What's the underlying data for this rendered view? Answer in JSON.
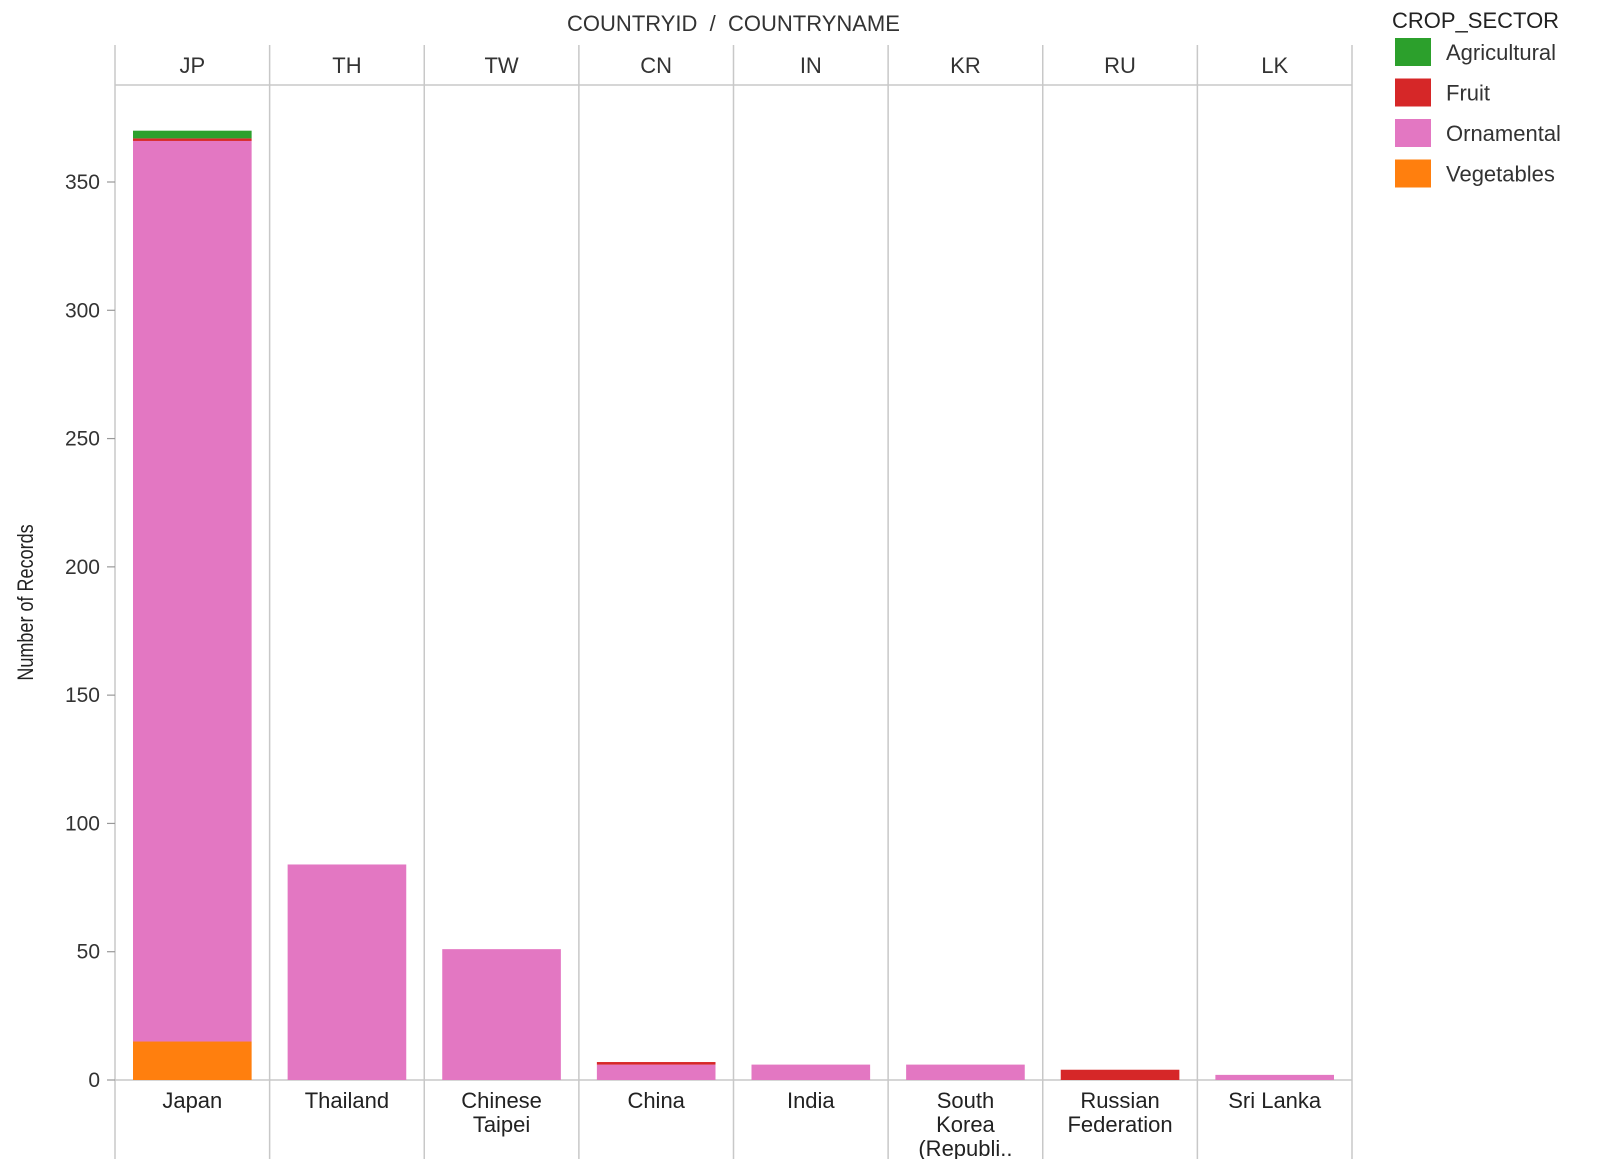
{
  "chart_data": {
    "type": "bar",
    "stacked": true,
    "header_title": "COUNTRYID  /  COUNTRYNAME",
    "ylabel": "Number of Records",
    "xlabel": "",
    "ylim": [
      0,
      385
    ],
    "yticks": [
      0,
      50,
      100,
      150,
      200,
      250,
      300,
      350
    ],
    "grid": false,
    "legend_position": "right",
    "country_ids": [
      "JP",
      "TH",
      "TW",
      "CN",
      "IN",
      "KR",
      "RU",
      "LK"
    ],
    "categories": [
      [
        "Japan"
      ],
      [
        "Thailand"
      ],
      [
        "Chinese",
        "Taipei"
      ],
      [
        "China"
      ],
      [
        "India"
      ],
      [
        "South",
        "Korea",
        "(Republi.."
      ],
      [
        "Russian",
        "Federation"
      ],
      [
        "Sri Lanka"
      ]
    ],
    "legend_title": "CROP_SECTOR",
    "series": [
      {
        "name": "Vegetables",
        "color": "#ff7f0e",
        "values": [
          15,
          0,
          0,
          0,
          0,
          0,
          0,
          0
        ]
      },
      {
        "name": "Ornamental",
        "color": "#e377c2",
        "values": [
          351,
          84,
          51,
          6,
          6,
          6,
          0,
          2
        ]
      },
      {
        "name": "Fruit",
        "color": "#d62728",
        "values": [
          1,
          0,
          0,
          1,
          0,
          0,
          4,
          0
        ]
      },
      {
        "name": "Agricultural",
        "color": "#2ca02c",
        "values": [
          3,
          0,
          0,
          0,
          0,
          0,
          0,
          0
        ]
      }
    ],
    "legend_order": [
      "Agricultural",
      "Fruit",
      "Ornamental",
      "Vegetables"
    ]
  }
}
